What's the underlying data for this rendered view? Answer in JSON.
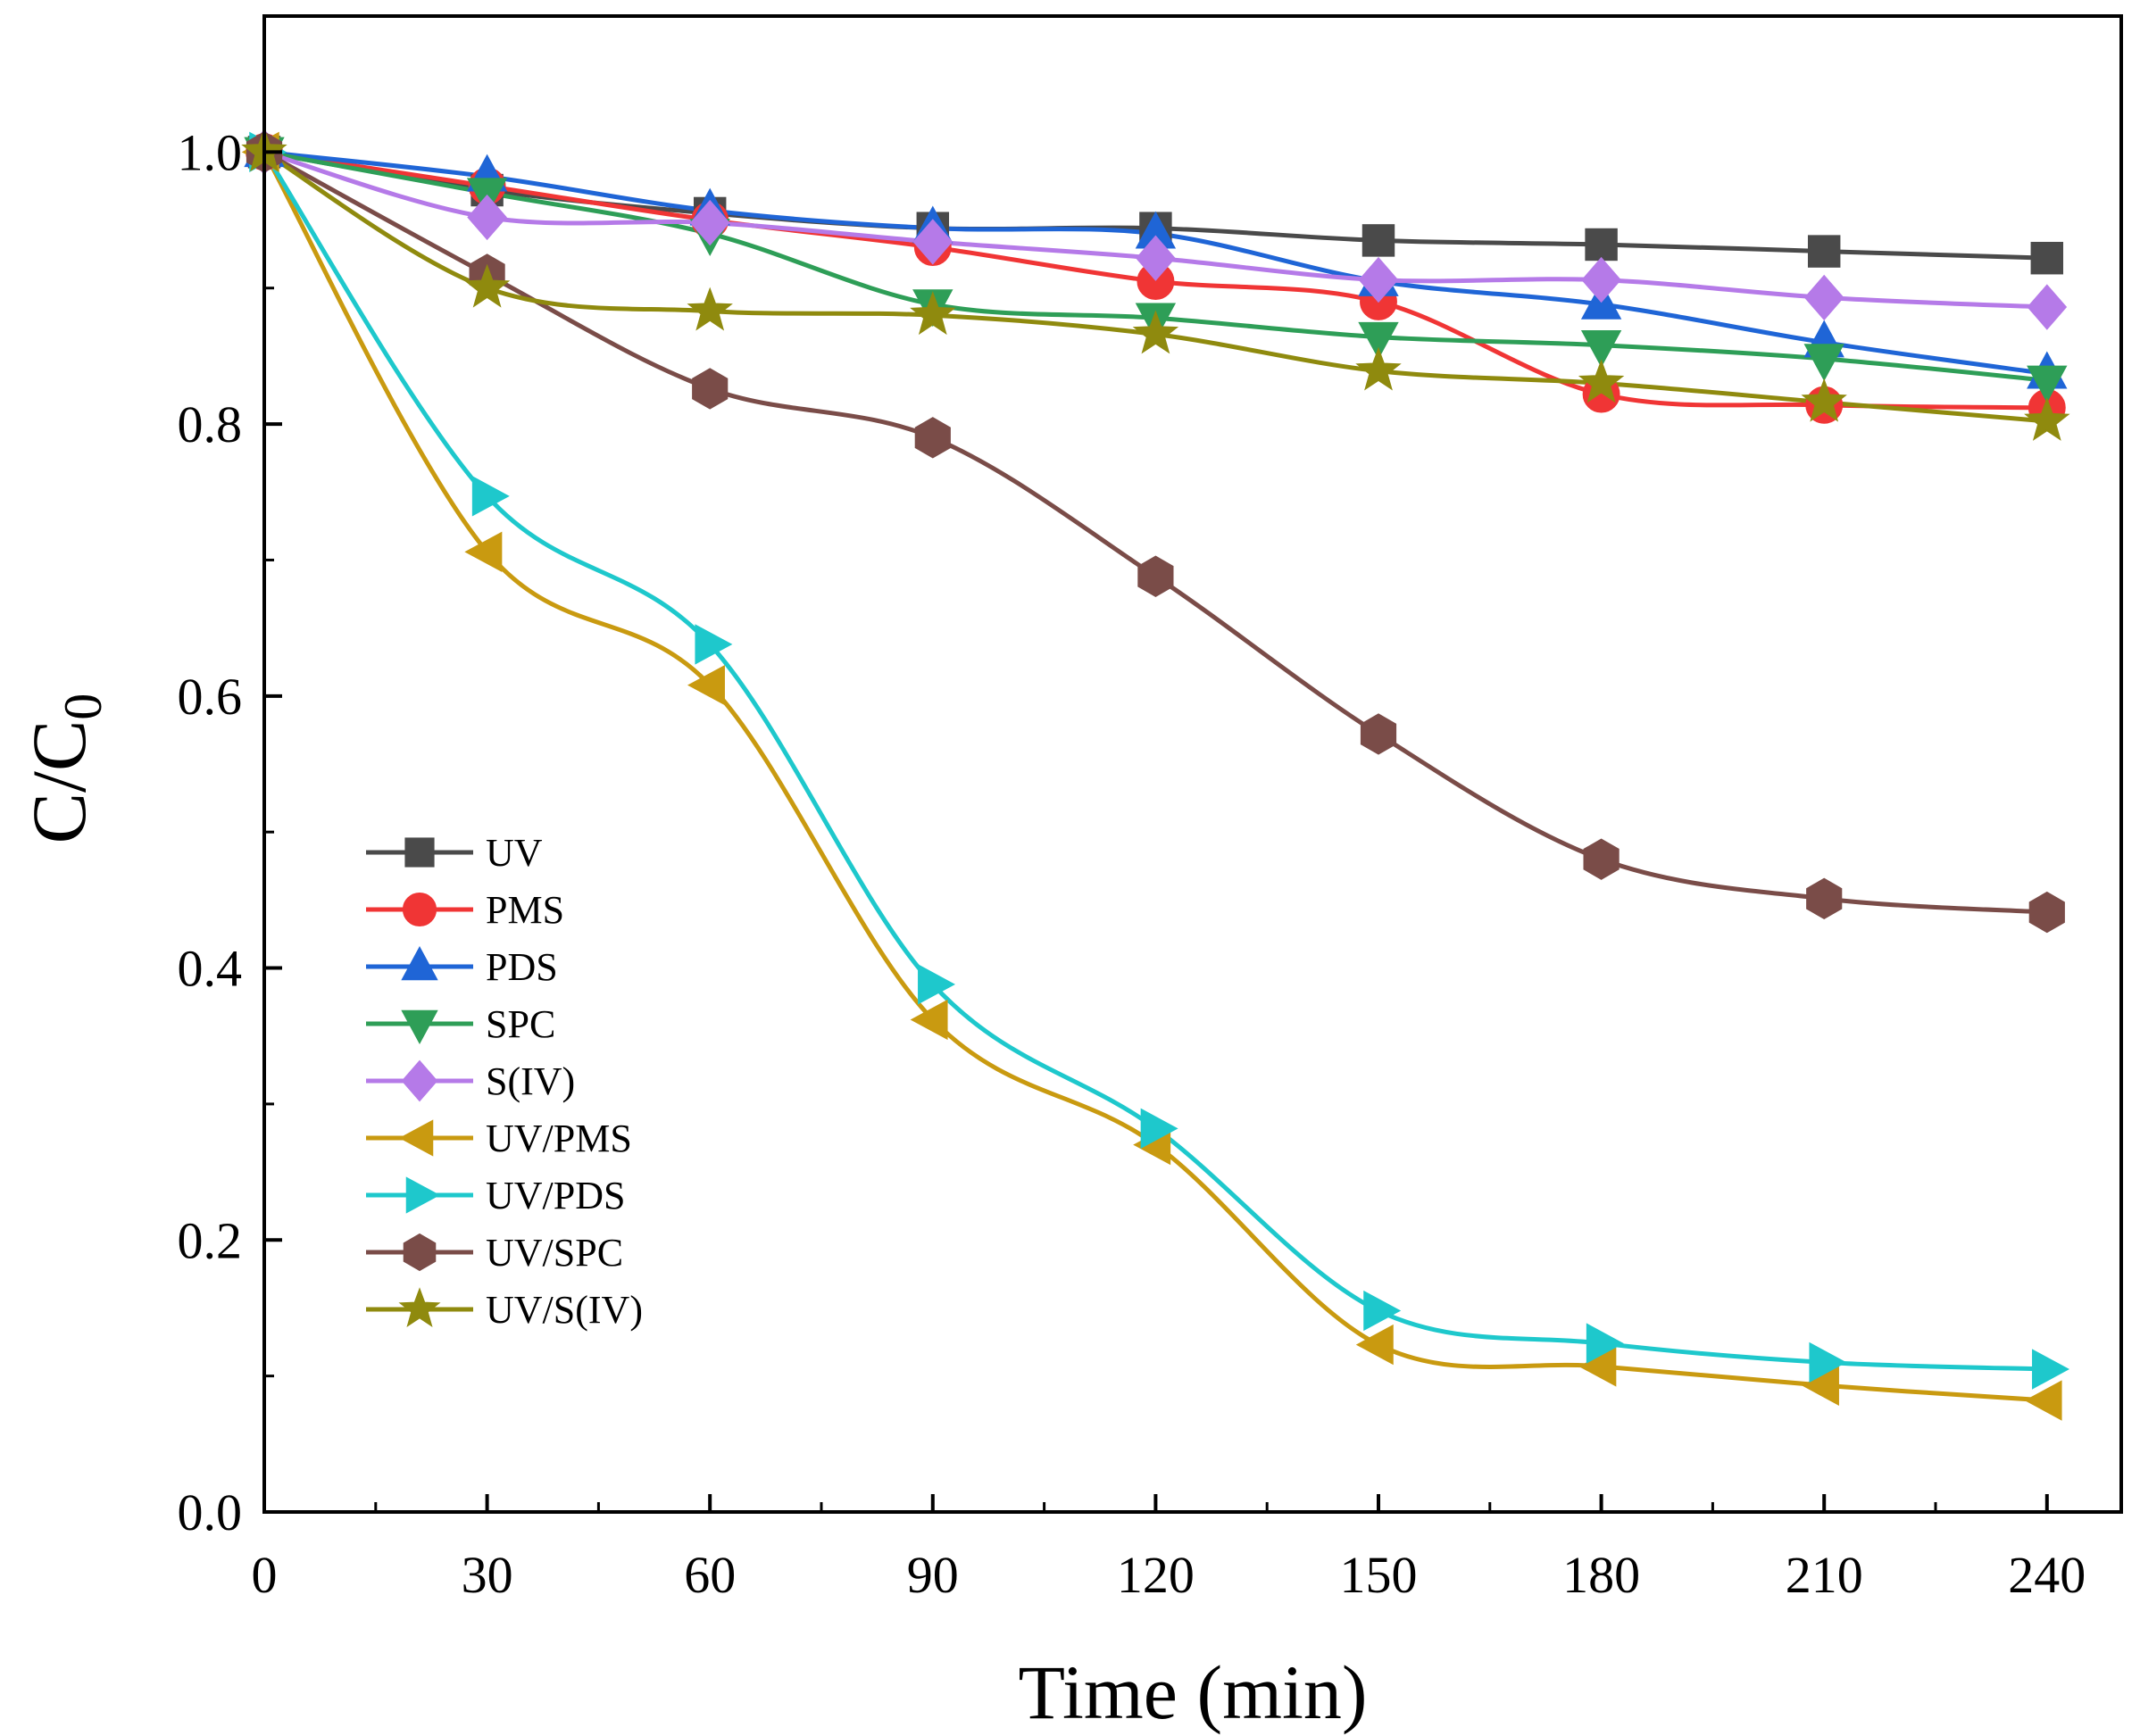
{
  "chart_data": {
    "type": "line",
    "title": "",
    "xlabel": "Time (min)",
    "ylabel": {
      "main": "C/C",
      "subscript": "0"
    },
    "xlim": [
      0,
      250
    ],
    "ylim": [
      0,
      1.1
    ],
    "x": [
      0,
      30,
      60,
      90,
      120,
      150,
      180,
      210,
      240
    ],
    "x_ticks": [
      "0",
      "30",
      "60",
      "90",
      "120",
      "150",
      "180",
      "210",
      "240"
    ],
    "y_tick_values": [
      0,
      0.2,
      0.4,
      0.6,
      0.8,
      1.0
    ],
    "y_ticks": [
      "0.0",
      "0.2",
      "0.4",
      "0.6",
      "0.8",
      "1.0"
    ],
    "grid": false,
    "legend_position": "bottom-left",
    "series": [
      {
        "name": "UV",
        "color": "#4a4a4a",
        "marker": "square",
        "values": [
          1.0,
          0.972,
          0.955,
          0.944,
          0.944,
          0.935,
          0.932,
          0.927,
          0.922
        ]
      },
      {
        "name": "PMS",
        "color": "#f03535",
        "marker": "circle",
        "values": [
          1.0,
          0.975,
          0.95,
          0.93,
          0.905,
          0.89,
          0.822,
          0.814,
          0.812
        ]
      },
      {
        "name": "PDS",
        "color": "#1f65d6",
        "marker": "triangle-up",
        "values": [
          1.0,
          0.982,
          0.957,
          0.944,
          0.94,
          0.905,
          0.888,
          0.86,
          0.837
        ]
      },
      {
        "name": "SPC",
        "color": "#2e9e57",
        "marker": "triangle-down",
        "values": [
          1.0,
          0.97,
          0.94,
          0.888,
          0.878,
          0.864,
          0.858,
          0.848,
          0.832
        ]
      },
      {
        "name": "S(IV)",
        "color": "#b57ae8",
        "marker": "diamond",
        "values": [
          1.0,
          0.952,
          0.948,
          0.934,
          0.922,
          0.906,
          0.906,
          0.893,
          0.886
        ]
      },
      {
        "name": "UV/PMS",
        "color": "#c99a10",
        "marker": "triangle-left",
        "values": [
          1.0,
          0.706,
          0.608,
          0.362,
          0.27,
          0.123,
          0.107,
          0.093,
          0.082
        ]
      },
      {
        "name": "UV/PDS",
        "color": "#1ec8cc",
        "marker": "triangle-right",
        "values": [
          1.0,
          0.747,
          0.638,
          0.388,
          0.282,
          0.148,
          0.124,
          0.11,
          0.105
        ]
      },
      {
        "name": "UV/SPC",
        "color": "#7a4c48",
        "marker": "hexagon",
        "values": [
          1.0,
          0.91,
          0.826,
          0.79,
          0.688,
          0.572,
          0.48,
          0.451,
          0.441
        ]
      },
      {
        "name": "UV/S(IV)",
        "color": "#8f8a0e",
        "marker": "star",
        "values": [
          1.0,
          0.9,
          0.883,
          0.88,
          0.866,
          0.839,
          0.83,
          0.816,
          0.802
        ]
      }
    ]
  }
}
